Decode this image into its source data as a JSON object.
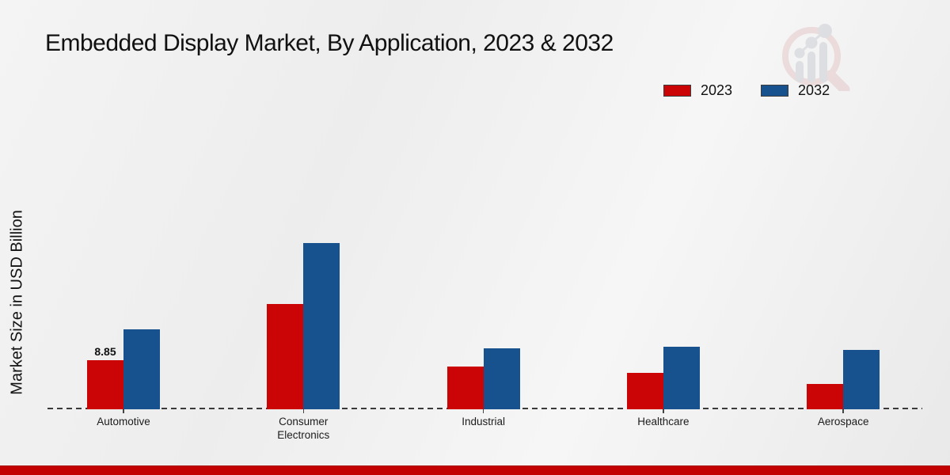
{
  "page": {
    "background_top": "#f4f4f4",
    "background_bottom": "#e9e9e9",
    "bottom_accent_color": "#c20100",
    "logo_icon": "magnifier-bar-chart-icon"
  },
  "chart_data": {
    "type": "bar",
    "title": "Embedded Display Market, By Application, 2023 & 2032",
    "xlabel": "",
    "ylabel": "Market Size in USD Billion",
    "categories": [
      "Automotive",
      "Consumer Electronics",
      "Industrial",
      "Healthcare",
      "Aerospace"
    ],
    "series": [
      {
        "name": "2023",
        "color": "#cb0406",
        "values": [
          8.85,
          18.8,
          7.6,
          6.5,
          4.5
        ]
      },
      {
        "name": "2032",
        "color": "#17518e",
        "values": [
          14.3,
          29.7,
          10.9,
          11.2,
          10.6
        ]
      }
    ],
    "bar_labels": [
      {
        "series_index": 0,
        "category_index": 0,
        "text": "8.85"
      }
    ],
    "ylim": [
      0,
      30
    ],
    "grid": false,
    "y_axis_ticks_visible": false,
    "baseline_style": "dashed",
    "baseline_color": "#3a3a3a",
    "legend_position": "top-right",
    "legend_swatch_border": "#3d3d3d"
  }
}
